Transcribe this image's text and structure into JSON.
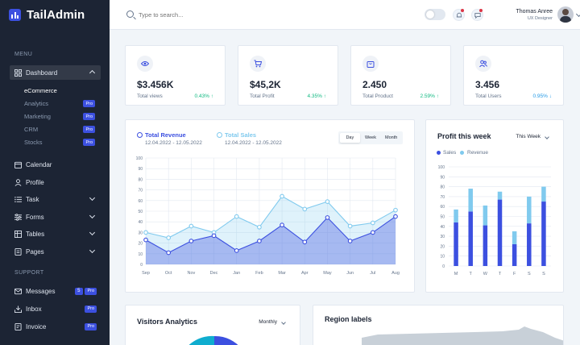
{
  "brand": {
    "name": "TailAdmin"
  },
  "sidebar": {
    "menu_label": "MENU",
    "support_label": "SUPPORT",
    "dashboard": "Dashboard",
    "sub_items": [
      {
        "label": "eCommerce",
        "pro": ""
      },
      {
        "label": "Analytics",
        "pro": "Pro"
      },
      {
        "label": "Marketing",
        "pro": "Pro"
      },
      {
        "label": "CRM",
        "pro": "Pro"
      },
      {
        "label": "Stocks",
        "pro": "Pro"
      }
    ],
    "items": [
      {
        "label": "Calendar",
        "icon": "calendar-icon"
      },
      {
        "label": "Profile",
        "icon": "user-icon"
      },
      {
        "label": "Task",
        "icon": "task-icon"
      },
      {
        "label": "Forms",
        "icon": "forms-icon"
      },
      {
        "label": "Tables",
        "icon": "table-icon"
      },
      {
        "label": "Pages",
        "icon": "pages-icon"
      }
    ],
    "support_items": [
      {
        "label": "Messages",
        "badge": "5",
        "pro": "Pro"
      },
      {
        "label": "Inbox",
        "pro": "Pro"
      },
      {
        "label": "Invoice",
        "pro": "Pro"
      }
    ]
  },
  "header": {
    "search_placeholder": "Type to search...",
    "user_name": "Thomas Anree",
    "user_role": "UX Designer"
  },
  "stats": [
    {
      "value": "$3.456K",
      "label": "Total views",
      "change": "0.43% ↑",
      "icon": "eye-icon",
      "direction": "up"
    },
    {
      "value": "$45,2K",
      "label": "Total Profit",
      "change": "4.35% ↑",
      "icon": "cart-icon",
      "direction": "up"
    },
    {
      "value": "2.450",
      "label": "Total Product",
      "change": "2.59% ↑",
      "icon": "bag-icon",
      "direction": "up"
    },
    {
      "value": "3.456",
      "label": "Total Users",
      "change": "0.95% ↓",
      "icon": "users-icon",
      "direction": "down"
    }
  ],
  "revenue_card": {
    "legend": [
      {
        "name": "Total Revenue",
        "range": "12.04.2022 - 12.05.2022",
        "color": "#3c50e0"
      },
      {
        "name": "Total Sales",
        "range": "12.04.2022 - 12.05.2022",
        "color": "#80caee"
      }
    ],
    "periods": [
      "Day",
      "Week",
      "Month"
    ],
    "active_period": "Day"
  },
  "profit_card": {
    "title": "Profit this week",
    "dropdown": "This Week",
    "legend": [
      {
        "name": "Sales",
        "color": "#3c50e0"
      },
      {
        "name": "Revenue",
        "color": "#80caee"
      }
    ]
  },
  "visitors_card": {
    "title": "Visitors Analytics",
    "dropdown": "Monthly"
  },
  "region_card": {
    "title": "Region labels"
  },
  "chart_data": [
    {
      "type": "area",
      "x": [
        "Sep",
        "Oct",
        "Nov",
        "Dec",
        "Jan",
        "Feb",
        "Mar",
        "Apr",
        "May",
        "Jun",
        "Jul",
        "Aug"
      ],
      "series": [
        {
          "name": "Total Revenue",
          "values": [
            23,
            11,
            22,
            27,
            13,
            22,
            37,
            21,
            44,
            22,
            30,
            45
          ],
          "color": "#3c50e0"
        },
        {
          "name": "Total Sales",
          "values": [
            30,
            25,
            36,
            30,
            45,
            35,
            64,
            52,
            59,
            36,
            39,
            51
          ],
          "color": "#80caee"
        }
      ],
      "yticks": [
        0,
        10,
        20,
        30,
        40,
        50,
        60,
        70,
        80,
        90,
        100
      ],
      "ylim": [
        0,
        100
      ],
      "grid": true
    },
    {
      "type": "bar",
      "stacked": true,
      "categories": [
        "M",
        "T",
        "W",
        "T",
        "F",
        "S",
        "S"
      ],
      "series": [
        {
          "name": "Sales",
          "values": [
            44,
            55,
            41,
            67,
            22,
            43,
            65
          ],
          "color": "#3c50e0"
        },
        {
          "name": "Revenue",
          "values": [
            13,
            23,
            20,
            8,
            13,
            27,
            15
          ],
          "color": "#80caee"
        }
      ],
      "yticks": [
        0,
        10,
        20,
        30,
        40,
        50,
        60,
        70,
        80,
        90,
        100
      ],
      "ylim": [
        0,
        100
      ],
      "grid": true
    }
  ]
}
